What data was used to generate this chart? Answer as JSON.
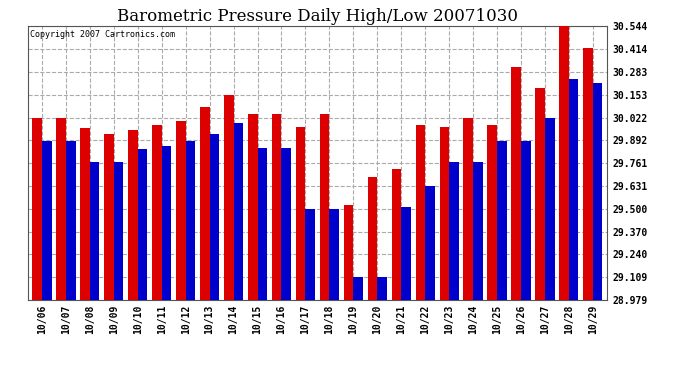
{
  "title": "Barometric Pressure Daily High/Low 20071030",
  "copyright": "Copyright 2007 Cartronics.com",
  "dates": [
    "10/06",
    "10/07",
    "10/08",
    "10/09",
    "10/10",
    "10/11",
    "10/12",
    "10/13",
    "10/14",
    "10/15",
    "10/16",
    "10/17",
    "10/18",
    "10/19",
    "10/20",
    "10/21",
    "10/22",
    "10/23",
    "10/24",
    "10/25",
    "10/26",
    "10/27",
    "10/28",
    "10/29"
  ],
  "highs": [
    30.02,
    30.02,
    29.96,
    29.93,
    29.95,
    29.98,
    30.0,
    30.08,
    30.15,
    30.04,
    30.04,
    29.97,
    30.04,
    29.52,
    29.68,
    29.73,
    29.98,
    29.97,
    30.02,
    29.98,
    30.31,
    30.19,
    30.57,
    30.42
  ],
  "lows": [
    29.89,
    29.89,
    29.77,
    29.77,
    29.84,
    29.86,
    29.89,
    29.93,
    29.99,
    29.85,
    29.85,
    29.5,
    29.5,
    29.11,
    29.11,
    29.51,
    29.63,
    29.77,
    29.77,
    29.89,
    29.89,
    30.02,
    30.24,
    30.22
  ],
  "high_color": "#dd0000",
  "low_color": "#0000cc",
  "bg_color": "#ffffff",
  "plot_bg_color": "#ffffff",
  "grid_color": "#aaaaaa",
  "ymin": 28.979,
  "ymax": 30.544,
  "yticks": [
    28.979,
    29.109,
    29.24,
    29.37,
    29.5,
    29.631,
    29.761,
    29.892,
    30.022,
    30.153,
    30.283,
    30.414,
    30.544
  ],
  "title_fontsize": 12,
  "tick_fontsize": 7,
  "bar_width": 0.4
}
